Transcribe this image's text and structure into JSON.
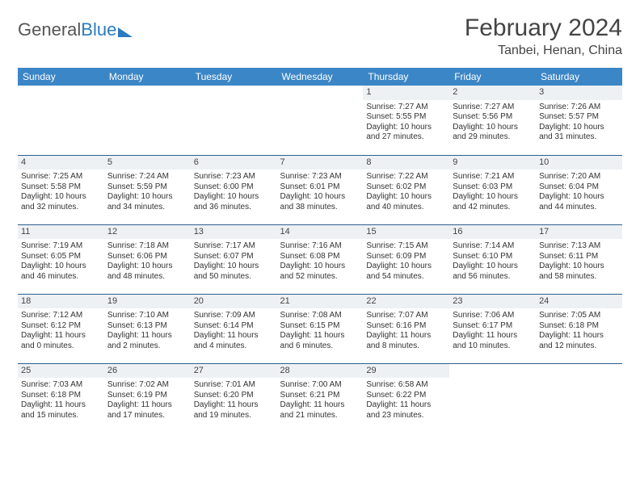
{
  "logo": {
    "text1": "General",
    "text2": "Blue"
  },
  "title": "February 2024",
  "location": "Tanbei, Henan, China",
  "colors": {
    "header_bg": "#3b86c6",
    "header_text": "#ffffff",
    "daynum_bg": "#eef1f3",
    "row_border": "#2d5f8e",
    "logo_blue": "#2b7bbf",
    "text": "#333333"
  },
  "weekdays": [
    "Sunday",
    "Monday",
    "Tuesday",
    "Wednesday",
    "Thursday",
    "Friday",
    "Saturday"
  ],
  "weeks": [
    [
      {},
      {},
      {},
      {},
      {
        "n": "1",
        "sr": "Sunrise: 7:27 AM",
        "ss": "Sunset: 5:55 PM",
        "d1": "Daylight: 10 hours",
        "d2": "and 27 minutes."
      },
      {
        "n": "2",
        "sr": "Sunrise: 7:27 AM",
        "ss": "Sunset: 5:56 PM",
        "d1": "Daylight: 10 hours",
        "d2": "and 29 minutes."
      },
      {
        "n": "3",
        "sr": "Sunrise: 7:26 AM",
        "ss": "Sunset: 5:57 PM",
        "d1": "Daylight: 10 hours",
        "d2": "and 31 minutes."
      }
    ],
    [
      {
        "n": "4",
        "sr": "Sunrise: 7:25 AM",
        "ss": "Sunset: 5:58 PM",
        "d1": "Daylight: 10 hours",
        "d2": "and 32 minutes."
      },
      {
        "n": "5",
        "sr": "Sunrise: 7:24 AM",
        "ss": "Sunset: 5:59 PM",
        "d1": "Daylight: 10 hours",
        "d2": "and 34 minutes."
      },
      {
        "n": "6",
        "sr": "Sunrise: 7:23 AM",
        "ss": "Sunset: 6:00 PM",
        "d1": "Daylight: 10 hours",
        "d2": "and 36 minutes."
      },
      {
        "n": "7",
        "sr": "Sunrise: 7:23 AM",
        "ss": "Sunset: 6:01 PM",
        "d1": "Daylight: 10 hours",
        "d2": "and 38 minutes."
      },
      {
        "n": "8",
        "sr": "Sunrise: 7:22 AM",
        "ss": "Sunset: 6:02 PM",
        "d1": "Daylight: 10 hours",
        "d2": "and 40 minutes."
      },
      {
        "n": "9",
        "sr": "Sunrise: 7:21 AM",
        "ss": "Sunset: 6:03 PM",
        "d1": "Daylight: 10 hours",
        "d2": "and 42 minutes."
      },
      {
        "n": "10",
        "sr": "Sunrise: 7:20 AM",
        "ss": "Sunset: 6:04 PM",
        "d1": "Daylight: 10 hours",
        "d2": "and 44 minutes."
      }
    ],
    [
      {
        "n": "11",
        "sr": "Sunrise: 7:19 AM",
        "ss": "Sunset: 6:05 PM",
        "d1": "Daylight: 10 hours",
        "d2": "and 46 minutes."
      },
      {
        "n": "12",
        "sr": "Sunrise: 7:18 AM",
        "ss": "Sunset: 6:06 PM",
        "d1": "Daylight: 10 hours",
        "d2": "and 48 minutes."
      },
      {
        "n": "13",
        "sr": "Sunrise: 7:17 AM",
        "ss": "Sunset: 6:07 PM",
        "d1": "Daylight: 10 hours",
        "d2": "and 50 minutes."
      },
      {
        "n": "14",
        "sr": "Sunrise: 7:16 AM",
        "ss": "Sunset: 6:08 PM",
        "d1": "Daylight: 10 hours",
        "d2": "and 52 minutes."
      },
      {
        "n": "15",
        "sr": "Sunrise: 7:15 AM",
        "ss": "Sunset: 6:09 PM",
        "d1": "Daylight: 10 hours",
        "d2": "and 54 minutes."
      },
      {
        "n": "16",
        "sr": "Sunrise: 7:14 AM",
        "ss": "Sunset: 6:10 PM",
        "d1": "Daylight: 10 hours",
        "d2": "and 56 minutes."
      },
      {
        "n": "17",
        "sr": "Sunrise: 7:13 AM",
        "ss": "Sunset: 6:11 PM",
        "d1": "Daylight: 10 hours",
        "d2": "and 58 minutes."
      }
    ],
    [
      {
        "n": "18",
        "sr": "Sunrise: 7:12 AM",
        "ss": "Sunset: 6:12 PM",
        "d1": "Daylight: 11 hours",
        "d2": "and 0 minutes."
      },
      {
        "n": "19",
        "sr": "Sunrise: 7:10 AM",
        "ss": "Sunset: 6:13 PM",
        "d1": "Daylight: 11 hours",
        "d2": "and 2 minutes."
      },
      {
        "n": "20",
        "sr": "Sunrise: 7:09 AM",
        "ss": "Sunset: 6:14 PM",
        "d1": "Daylight: 11 hours",
        "d2": "and 4 minutes."
      },
      {
        "n": "21",
        "sr": "Sunrise: 7:08 AM",
        "ss": "Sunset: 6:15 PM",
        "d1": "Daylight: 11 hours",
        "d2": "and 6 minutes."
      },
      {
        "n": "22",
        "sr": "Sunrise: 7:07 AM",
        "ss": "Sunset: 6:16 PM",
        "d1": "Daylight: 11 hours",
        "d2": "and 8 minutes."
      },
      {
        "n": "23",
        "sr": "Sunrise: 7:06 AM",
        "ss": "Sunset: 6:17 PM",
        "d1": "Daylight: 11 hours",
        "d2": "and 10 minutes."
      },
      {
        "n": "24",
        "sr": "Sunrise: 7:05 AM",
        "ss": "Sunset: 6:18 PM",
        "d1": "Daylight: 11 hours",
        "d2": "and 12 minutes."
      }
    ],
    [
      {
        "n": "25",
        "sr": "Sunrise: 7:03 AM",
        "ss": "Sunset: 6:18 PM",
        "d1": "Daylight: 11 hours",
        "d2": "and 15 minutes."
      },
      {
        "n": "26",
        "sr": "Sunrise: 7:02 AM",
        "ss": "Sunset: 6:19 PM",
        "d1": "Daylight: 11 hours",
        "d2": "and 17 minutes."
      },
      {
        "n": "27",
        "sr": "Sunrise: 7:01 AM",
        "ss": "Sunset: 6:20 PM",
        "d1": "Daylight: 11 hours",
        "d2": "and 19 minutes."
      },
      {
        "n": "28",
        "sr": "Sunrise: 7:00 AM",
        "ss": "Sunset: 6:21 PM",
        "d1": "Daylight: 11 hours",
        "d2": "and 21 minutes."
      },
      {
        "n": "29",
        "sr": "Sunrise: 6:58 AM",
        "ss": "Sunset: 6:22 PM",
        "d1": "Daylight: 11 hours",
        "d2": "and 23 minutes."
      },
      {},
      {}
    ]
  ]
}
